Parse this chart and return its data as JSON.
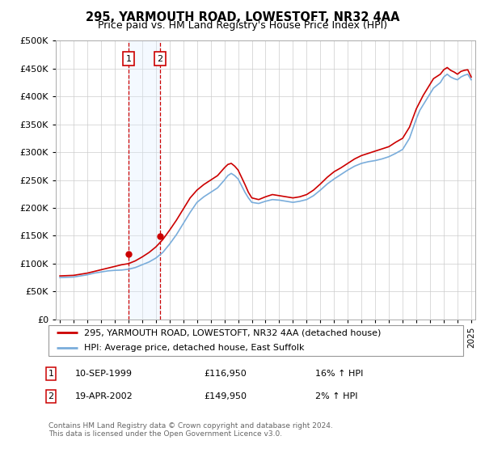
{
  "title": "295, YARMOUTH ROAD, LOWESTOFT, NR32 4AA",
  "subtitle": "Price paid vs. HM Land Registry's House Price Index (HPI)",
  "legend_line1": "295, YARMOUTH ROAD, LOWESTOFT, NR32 4AA (detached house)",
  "legend_line2": "HPI: Average price, detached house, East Suffolk",
  "footer": "Contains HM Land Registry data © Crown copyright and database right 2024.\nThis data is licensed under the Open Government Licence v3.0.",
  "sale1_label": "1",
  "sale2_label": "2",
  "sale1_date": "10-SEP-1999",
  "sale1_price": "£116,950",
  "sale1_hpi": "16% ↑ HPI",
  "sale2_date": "19-APR-2002",
  "sale2_price": "£149,950",
  "sale2_hpi": "2% ↑ HPI",
  "sale1_year": 2000.0,
  "sale2_year": 2002.3,
  "sale1_value": 116950,
  "sale2_value": 149950,
  "red_color": "#cc0000",
  "blue_color": "#7aaddb",
  "shade_color": "#ddeeff",
  "ylim_min": 0,
  "ylim_max": 500000,
  "yticks": [
    0,
    50000,
    100000,
    150000,
    200000,
    250000,
    300000,
    350000,
    400000,
    450000,
    500000
  ],
  "years": [
    1995,
    1995.5,
    1996,
    1996.5,
    1997,
    1997.5,
    1998,
    1998.5,
    1999,
    1999.5,
    2000,
    2000.5,
    2001,
    2001.5,
    2002,
    2002.5,
    2003,
    2003.5,
    2004,
    2004.5,
    2005,
    2005.5,
    2006,
    2006.5,
    2007,
    2007.25,
    2007.5,
    2007.75,
    2008,
    2008.25,
    2008.5,
    2008.75,
    2009,
    2009.5,
    2010,
    2010.5,
    2011,
    2011.5,
    2012,
    2012.5,
    2013,
    2013.5,
    2014,
    2014.5,
    2015,
    2015.5,
    2016,
    2016.5,
    2017,
    2017.5,
    2018,
    2018.5,
    2019,
    2019.5,
    2020,
    2020.5,
    2021,
    2021.25,
    2021.5,
    2021.75,
    2022,
    2022.25,
    2022.5,
    2022.75,
    2023,
    2023.25,
    2023.5,
    2023.75,
    2024,
    2024.25,
    2024.5,
    2024.75,
    2025
  ],
  "hpi": [
    75000,
    75500,
    76000,
    78000,
    80000,
    83000,
    85000,
    87000,
    88000,
    88500,
    90000,
    93000,
    98000,
    103000,
    110000,
    120000,
    135000,
    152000,
    172000,
    192000,
    210000,
    220000,
    228000,
    236000,
    250000,
    258000,
    262000,
    258000,
    252000,
    240000,
    228000,
    218000,
    210000,
    208000,
    212000,
    215000,
    214000,
    212000,
    210000,
    212000,
    215000,
    222000,
    232000,
    243000,
    252000,
    260000,
    268000,
    275000,
    280000,
    283000,
    285000,
    288000,
    292000,
    298000,
    305000,
    325000,
    360000,
    375000,
    385000,
    395000,
    405000,
    415000,
    420000,
    425000,
    435000,
    440000,
    435000,
    432000,
    430000,
    435000,
    438000,
    440000,
    430000
  ],
  "red": [
    78000,
    78500,
    79000,
    81000,
    83000,
    86000,
    89000,
    92000,
    95000,
    98000,
    100000,
    105000,
    112000,
    120000,
    130000,
    143000,
    160000,
    178000,
    198000,
    218000,
    232000,
    242000,
    250000,
    258000,
    272000,
    278000,
    280000,
    275000,
    268000,
    255000,
    242000,
    228000,
    218000,
    215000,
    220000,
    224000,
    222000,
    220000,
    218000,
    220000,
    224000,
    232000,
    243000,
    255000,
    265000,
    272000,
    280000,
    288000,
    294000,
    298000,
    302000,
    306000,
    310000,
    318000,
    325000,
    345000,
    378000,
    390000,
    402000,
    412000,
    422000,
    432000,
    436000,
    440000,
    448000,
    452000,
    447000,
    444000,
    440000,
    445000,
    447000,
    448000,
    435000
  ]
}
